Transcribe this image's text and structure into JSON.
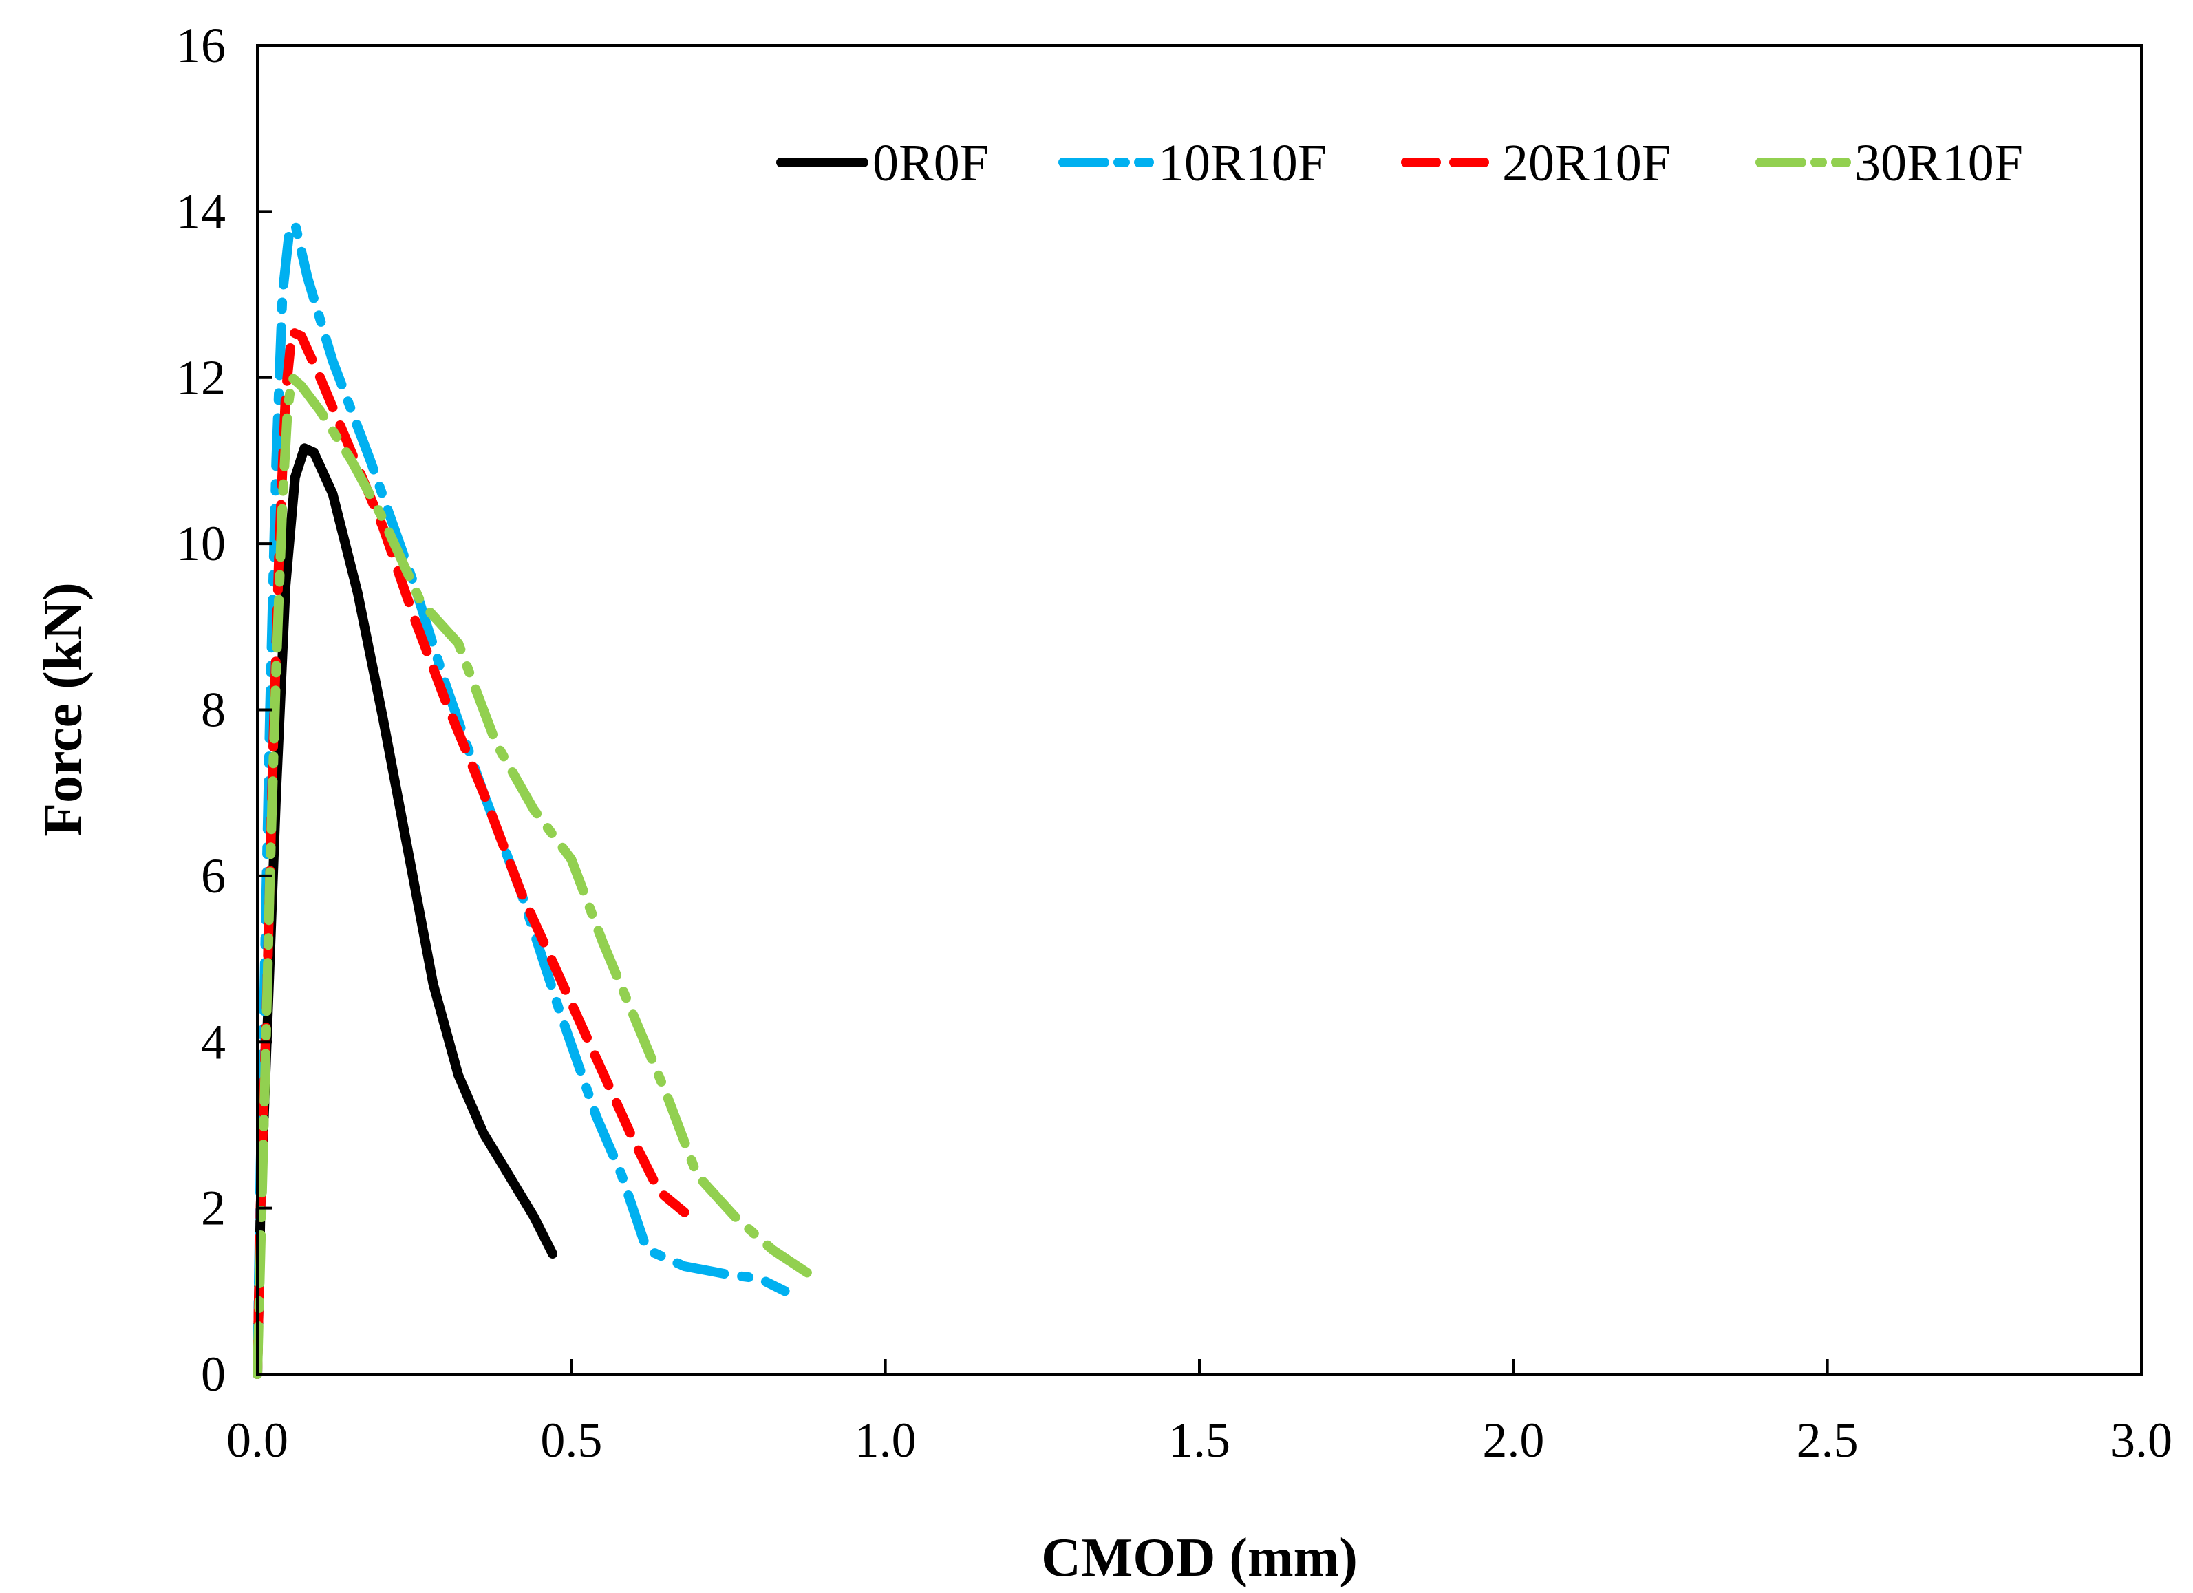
{
  "chart_data": {
    "type": "line",
    "title": "",
    "xlabel": "CMOD (mm)",
    "ylabel": "Force (kN)",
    "xlim": [
      0,
      3.0
    ],
    "ylim": [
      0,
      16
    ],
    "x_ticks": [
      0.0,
      0.5,
      1.0,
      1.5,
      2.0,
      2.5,
      3.0
    ],
    "x_tick_labels": [
      "0.0",
      "0.5",
      "1.0",
      "1.5",
      "2.0",
      "2.5",
      "3.0"
    ],
    "y_ticks": [
      0,
      2,
      4,
      6,
      8,
      10,
      12,
      14,
      16
    ],
    "y_tick_labels": [
      "0",
      "2",
      "4",
      "6",
      "8",
      "10",
      "12",
      "14",
      "16"
    ],
    "grid": false,
    "legend_position": "top-right",
    "series": [
      {
        "name": "0R0F",
        "color": "#000000",
        "dash": "solid",
        "points": [
          [
            0,
            0
          ],
          [
            0.005,
            2
          ],
          [
            0.015,
            4
          ],
          [
            0.03,
            7
          ],
          [
            0.045,
            9.5
          ],
          [
            0.06,
            10.8
          ],
          [
            0.075,
            11.15
          ],
          [
            0.09,
            11.1
          ],
          [
            0.12,
            10.6
          ],
          [
            0.16,
            9.4
          ],
          [
            0.2,
            7.9
          ],
          [
            0.24,
            6.3
          ],
          [
            0.28,
            4.7
          ],
          [
            0.32,
            3.6
          ],
          [
            0.36,
            2.9
          ],
          [
            0.4,
            2.4
          ],
          [
            0.44,
            1.9
          ],
          [
            0.47,
            1.45
          ]
        ]
      },
      {
        "name": "10R10F",
        "color": "#00b0f0",
        "dash": "dashdot",
        "points": [
          [
            0,
            0
          ],
          [
            0.005,
            2.5
          ],
          [
            0.012,
            5
          ],
          [
            0.02,
            8
          ],
          [
            0.03,
            11
          ],
          [
            0.04,
            13
          ],
          [
            0.05,
            13.7
          ],
          [
            0.06,
            13.85
          ],
          [
            0.08,
            13.2
          ],
          [
            0.12,
            12.2
          ],
          [
            0.18,
            11
          ],
          [
            0.25,
            9.5
          ],
          [
            0.3,
            8.3
          ],
          [
            0.36,
            7
          ],
          [
            0.42,
            5.8
          ],
          [
            0.48,
            4.4
          ],
          [
            0.54,
            3.1
          ],
          [
            0.58,
            2.4
          ],
          [
            0.62,
            1.5
          ],
          [
            0.68,
            1.3
          ],
          [
            0.75,
            1.2
          ],
          [
            0.8,
            1.15
          ],
          [
            0.84,
            1.0
          ]
        ]
      },
      {
        "name": "20R10F",
        "color": "#ff0000",
        "dash": "dashed",
        "points": [
          [
            0,
            0
          ],
          [
            0.005,
            2
          ],
          [
            0.015,
            4.5
          ],
          [
            0.025,
            7.5
          ],
          [
            0.035,
            10
          ],
          [
            0.045,
            11.8
          ],
          [
            0.055,
            12.55
          ],
          [
            0.07,
            12.5
          ],
          [
            0.1,
            12
          ],
          [
            0.15,
            11.1
          ],
          [
            0.2,
            10.2
          ],
          [
            0.25,
            9.1
          ],
          [
            0.3,
            8.1
          ],
          [
            0.36,
            7
          ],
          [
            0.42,
            5.8
          ],
          [
            0.48,
            4.8
          ],
          [
            0.54,
            3.8
          ],
          [
            0.6,
            2.8
          ],
          [
            0.64,
            2.2
          ],
          [
            0.68,
            1.95
          ]
        ]
      },
      {
        "name": "30R10F",
        "color": "#92d050",
        "dash": "dashdot",
        "points": [
          [
            0,
            0
          ],
          [
            0.005,
            1.5
          ],
          [
            0.012,
            3.5
          ],
          [
            0.02,
            6
          ],
          [
            0.03,
            8.5
          ],
          [
            0.04,
            10.5
          ],
          [
            0.048,
            11.6
          ],
          [
            0.055,
            12.0
          ],
          [
            0.07,
            11.9
          ],
          [
            0.1,
            11.6
          ],
          [
            0.15,
            11.0
          ],
          [
            0.2,
            10.3
          ],
          [
            0.26,
            9.3
          ],
          [
            0.32,
            8.8
          ],
          [
            0.38,
            7.6
          ],
          [
            0.44,
            6.8
          ],
          [
            0.5,
            6.2
          ],
          [
            0.55,
            5.2
          ],
          [
            0.6,
            4.3
          ],
          [
            0.65,
            3.4
          ],
          [
            0.7,
            2.4
          ],
          [
            0.76,
            1.9
          ],
          [
            0.82,
            1.5
          ],
          [
            0.88,
            1.2
          ]
        ]
      }
    ]
  }
}
